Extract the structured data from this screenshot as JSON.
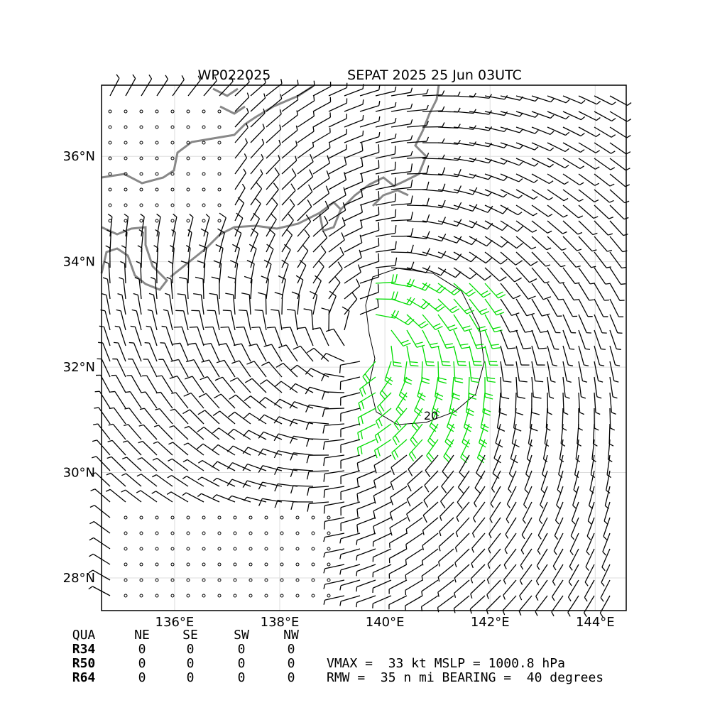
{
  "title_left": "WP022025",
  "title_right": "SEPAT 2025 25 Jun 03UTC",
  "map": {
    "xlim": [
      134.61,
      144.59
    ],
    "ylim": [
      27.38,
      37.35
    ],
    "xticks": [
      {
        "value": 136,
        "label": "136°E"
      },
      {
        "value": 138,
        "label": "138°E"
      },
      {
        "value": 140,
        "label": "140°E"
      },
      {
        "value": 142,
        "label": "142°E"
      },
      {
        "value": 144,
        "label": "144°E"
      }
    ],
    "yticks": [
      {
        "value": 28,
        "label": "28°N"
      },
      {
        "value": 30,
        "label": "30°N"
      },
      {
        "value": 32,
        "label": "32°N"
      },
      {
        "value": 34,
        "label": "34°N"
      },
      {
        "value": 36,
        "label": "36°N"
      }
    ],
    "contour_label": "20"
  },
  "table": {
    "header": [
      "QUA",
      "NE",
      "SE",
      "SW",
      "NW"
    ],
    "rows": [
      [
        "R34",
        "0",
        "0",
        "0",
        "0"
      ],
      [
        "R50",
        "0",
        "0",
        "0",
        "0"
      ],
      [
        "R64",
        "0",
        "0",
        "0",
        "0"
      ]
    ]
  },
  "stats": [
    "VMAX =  33 kt MSLP = 1000.8 hPa",
    "RMW =  35 n mi BEARING =  40 degrees"
  ]
}
